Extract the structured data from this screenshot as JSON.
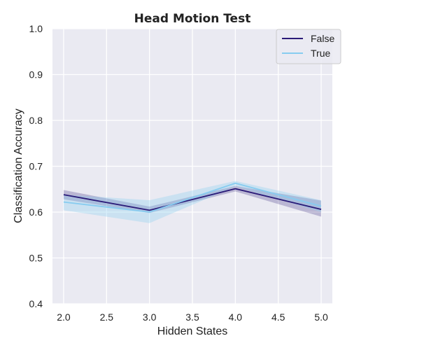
{
  "chart_data": {
    "type": "line",
    "title": "Head Motion Test",
    "xlabel": "Hidden States",
    "ylabel": "Classification Accuracy",
    "xlim": [
      1.87,
      5.13
    ],
    "ylim": [
      0.4,
      1.0
    ],
    "xticks": [
      "2.0",
      "2.5",
      "3.0",
      "3.5",
      "4.0",
      "4.5",
      "5.0"
    ],
    "yticks": [
      "0.4",
      "0.5",
      "0.6",
      "0.7",
      "0.8",
      "0.9",
      "1.0"
    ],
    "grid": true,
    "legend_position": "top-right",
    "x": [
      2,
      3,
      4,
      5
    ],
    "series": [
      {
        "name": "False",
        "color": "#2a1a78",
        "values": [
          0.638,
          0.604,
          0.651,
          0.606
        ],
        "ci_low": [
          0.628,
          0.598,
          0.645,
          0.59
        ],
        "ci_high": [
          0.648,
          0.612,
          0.657,
          0.625
        ]
      },
      {
        "name": "True",
        "color": "#87ccf0",
        "values": [
          0.622,
          0.6,
          0.663,
          0.613
        ],
        "ci_low": [
          0.604,
          0.576,
          0.656,
          0.6
        ],
        "ci_high": [
          0.638,
          0.626,
          0.668,
          0.626
        ]
      }
    ]
  },
  "style": {
    "plot_bg": "#eaeaf2",
    "grid_color": "#ffffff",
    "legend_bg": "#eaeaf2",
    "legend_border": "#cccccc"
  }
}
